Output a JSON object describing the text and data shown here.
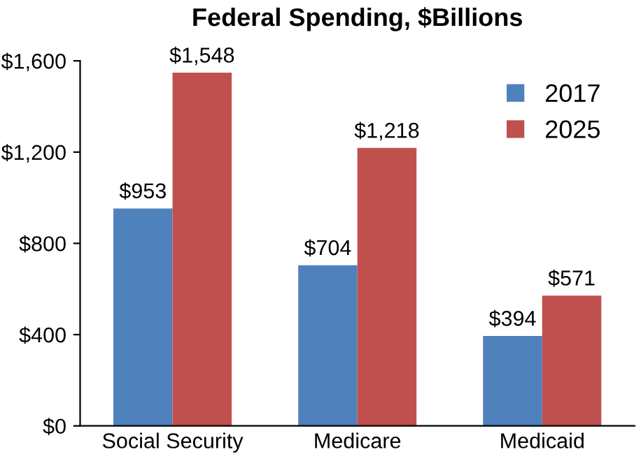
{
  "chart_data": {
    "type": "bar",
    "title": "Federal Spending, $Billions",
    "categories": [
      "Social Security",
      "Medicare",
      "Medicaid"
    ],
    "series": [
      {
        "name": "2017",
        "color": "#4f81bd",
        "values": [
          953,
          704,
          394
        ],
        "value_labels": [
          "$953",
          "$704",
          "$394"
        ]
      },
      {
        "name": "2025",
        "color": "#c0504d",
        "values": [
          1548,
          1218,
          571
        ],
        "value_labels": [
          "$1,548",
          "$1,218",
          "$571"
        ]
      }
    ],
    "ylim": [
      0,
      1600
    ],
    "yticks": [
      {
        "value": 0,
        "label": "$0"
      },
      {
        "value": 400,
        "label": "$400"
      },
      {
        "value": 800,
        "label": "$800"
      },
      {
        "value": 1200,
        "label": "$1,200"
      },
      {
        "value": 1600,
        "label": "$1,600"
      }
    ],
    "grid": false,
    "legend": "top right"
  }
}
